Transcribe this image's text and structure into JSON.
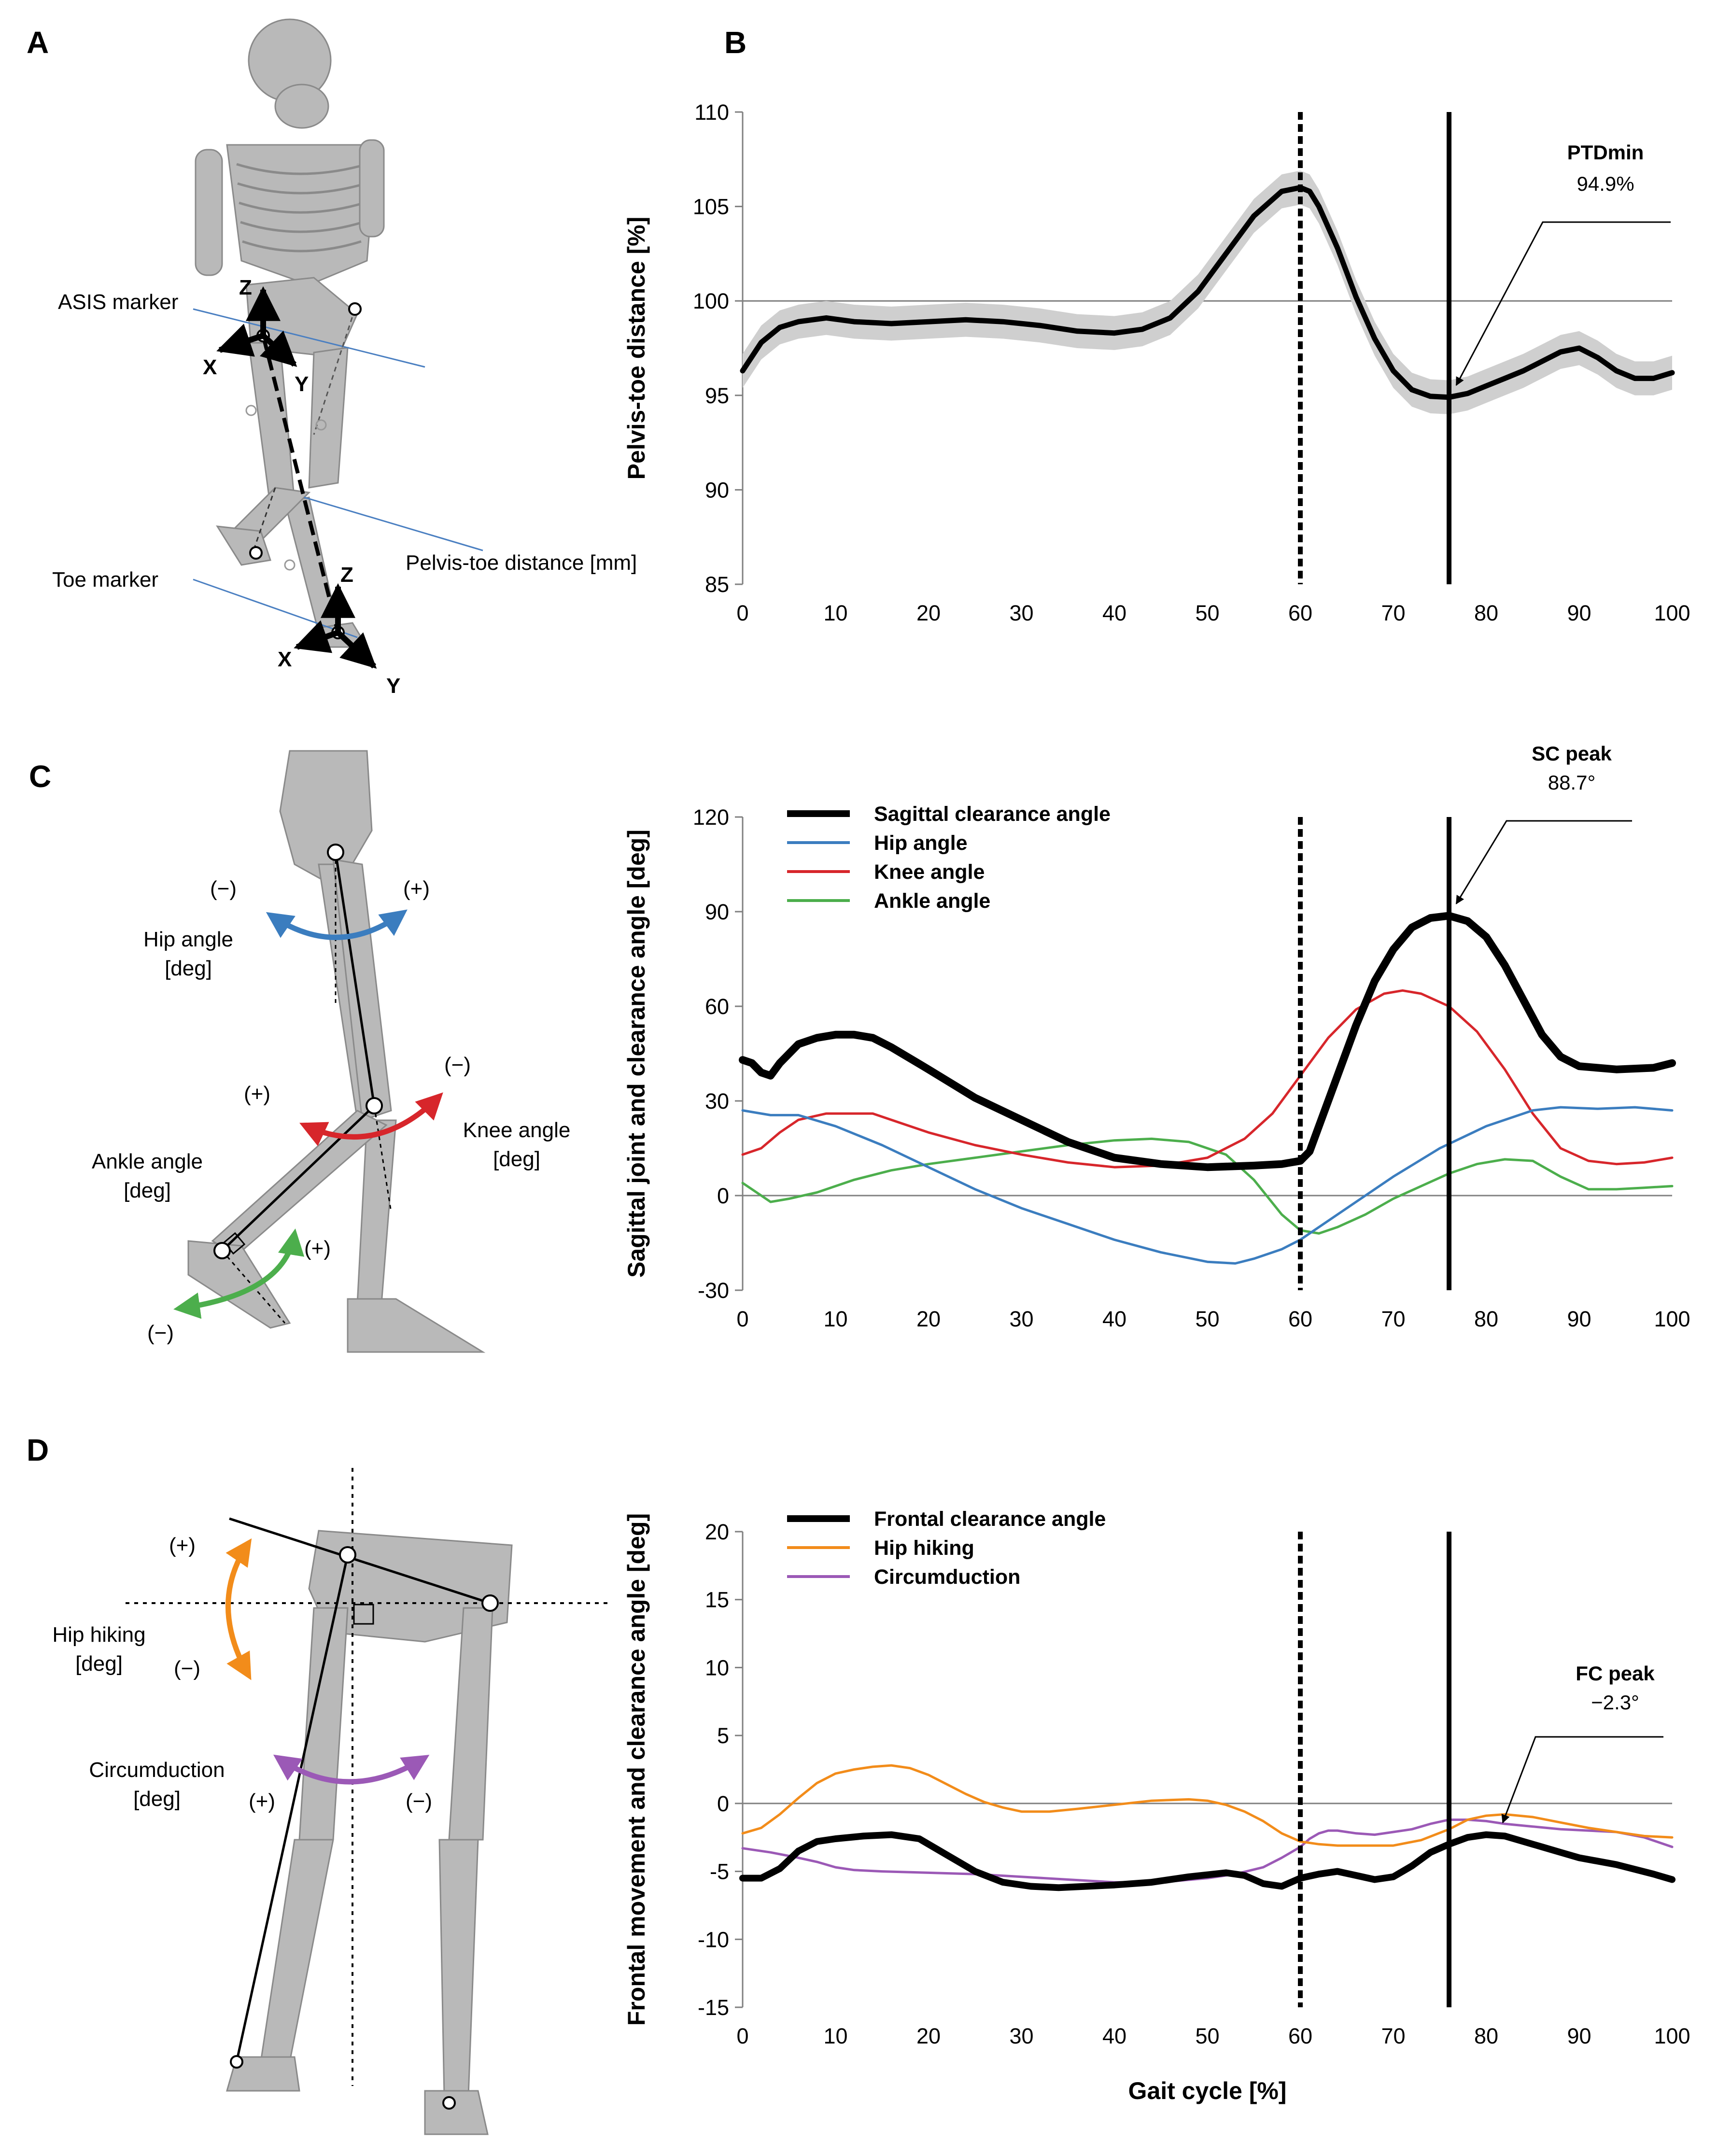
{
  "panels": {
    "a": "A",
    "b": "B",
    "c": "C",
    "d": "D"
  },
  "schematic_a": {
    "asis_marker": "ASIS marker",
    "toe_marker": "Toe marker",
    "pelvis_toe_distance": "Pelvis-toe distance [mm]",
    "axis_x": "X",
    "axis_y": "Y",
    "axis_z": "Z"
  },
  "schematic_c": {
    "hip_angle_1": "Hip angle",
    "hip_angle_2": "[deg]",
    "knee_angle_1": "Knee angle",
    "knee_angle_2": "[deg]",
    "ankle_angle_1": "Ankle angle",
    "ankle_angle_2": "[deg]",
    "minus": "(−)",
    "plus": "(+)"
  },
  "schematic_d": {
    "hip_hiking_1": "Hip hiking",
    "hip_hiking_2": "[deg]",
    "circumduction_1": "Circumduction",
    "circumduction_2": "[deg]",
    "minus": "(−)",
    "plus": "(+)"
  },
  "colors": {
    "black": "#000000",
    "hip": "#3b7dbf",
    "knee": "#d7262b",
    "ankle": "#4cae4c",
    "hiking": "#f28c1a",
    "circumduction": "#9b59b6",
    "band": "#cfcfcf",
    "ref": "#7f7f7f"
  },
  "chart_data": [
    {
      "id": "B",
      "type": "line",
      "title": "",
      "xlabel": "",
      "ylabel": "Pelvis-toe distance [%]",
      "xlim": [
        0,
        100
      ],
      "ylim": [
        85,
        110
      ],
      "x_ticks": [
        0,
        10,
        20,
        30,
        40,
        50,
        60,
        70,
        80,
        90,
        100
      ],
      "y_ticks": [
        85,
        90,
        95,
        100,
        105,
        110
      ],
      "reference_line": 100,
      "vlines": [
        {
          "x": 60,
          "style": "dashed"
        },
        {
          "x": 76,
          "style": "solid"
        }
      ],
      "annotation": {
        "title": "PTDmin",
        "value": "94.9%",
        "x": 76,
        "y": 94.9
      },
      "series": [
        {
          "name": "Pelvis-toe distance",
          "color": "#000000",
          "band": 0.9,
          "x": [
            0,
            2,
            4,
            6,
            9,
            12,
            16,
            20,
            24,
            28,
            32,
            36,
            40,
            43,
            46,
            49,
            52,
            55,
            58,
            60,
            61,
            62,
            64,
            66,
            68,
            70,
            72,
            74,
            76,
            78,
            80,
            82,
            84,
            86,
            88,
            90,
            92,
            94,
            96,
            98,
            100
          ],
          "y": [
            96.3,
            97.8,
            98.6,
            98.9,
            99.1,
            98.9,
            98.8,
            98.9,
            99.0,
            98.9,
            98.7,
            98.4,
            98.3,
            98.5,
            99.1,
            100.5,
            102.5,
            104.5,
            105.8,
            106.0,
            105.8,
            105.0,
            102.8,
            100.2,
            98.0,
            96.3,
            95.3,
            94.95,
            94.9,
            95.1,
            95.5,
            95.9,
            96.3,
            96.8,
            97.3,
            97.5,
            97.0,
            96.3,
            95.9,
            95.9,
            96.2
          ]
        }
      ]
    },
    {
      "id": "C",
      "type": "line",
      "title": "",
      "xlabel": "",
      "ylabel": "Sagittal joint and clearance angle [deg]",
      "xlim": [
        0,
        100
      ],
      "ylim": [
        -30,
        120
      ],
      "x_ticks": [
        0,
        10,
        20,
        30,
        40,
        50,
        60,
        70,
        80,
        90,
        100
      ],
      "y_ticks": [
        -30,
        0,
        30,
        60,
        90,
        120
      ],
      "reference_line": 0,
      "vlines": [
        {
          "x": 60,
          "style": "dashed"
        },
        {
          "x": 76,
          "style": "solid"
        }
      ],
      "annotation": {
        "title": "SC peak",
        "value": "88.7°",
        "x": 76,
        "y": 88.7
      },
      "legend_position": "top-left",
      "series": [
        {
          "name": "Sagittal clearance angle",
          "color": "#000000",
          "width": 16,
          "x": [
            0,
            1,
            2,
            3,
            4,
            6,
            8,
            10,
            12,
            14,
            16,
            20,
            25,
            30,
            35,
            40,
            45,
            50,
            55,
            58,
            60,
            61,
            62,
            64,
            66,
            68,
            70,
            72,
            74,
            76,
            78,
            80,
            82,
            84,
            86,
            88,
            90,
            94,
            98,
            100
          ],
          "y": [
            43,
            42,
            39,
            38,
            42,
            48,
            50,
            51,
            51,
            50,
            47,
            40,
            31,
            24,
            17,
            12,
            10,
            9,
            9.5,
            10,
            11,
            14,
            22,
            38,
            54,
            68,
            78,
            85,
            88,
            88.7,
            87,
            82,
            73,
            62,
            51,
            44,
            41,
            40,
            40.5,
            42
          ]
        },
        {
          "name": "Hip angle",
          "color": "#3b7dbf",
          "width": 5,
          "x": [
            0,
            3,
            6,
            10,
            15,
            20,
            25,
            30,
            35,
            40,
            45,
            50,
            53,
            55,
            58,
            60,
            62,
            65,
            70,
            75,
            80,
            85,
            88,
            92,
            96,
            100
          ],
          "y": [
            27,
            25.5,
            25.5,
            22,
            16,
            9,
            2,
            -4,
            -9,
            -14,
            -18,
            -21,
            -21.5,
            -20,
            -17,
            -14,
            -10,
            -4,
            6,
            15,
            22,
            27,
            28,
            27.5,
            28,
            27
          ]
        },
        {
          "name": "Knee angle",
          "color": "#d7262b",
          "width": 5,
          "x": [
            0,
            2,
            4,
            6,
            9,
            12,
            14,
            17,
            20,
            25,
            30,
            35,
            40,
            45,
            50,
            54,
            57,
            60,
            63,
            66,
            69,
            71,
            73,
            76,
            79,
            82,
            85,
            88,
            91,
            94,
            97,
            100
          ],
          "y": [
            13,
            15,
            20,
            24,
            26,
            26,
            26,
            23,
            20,
            16,
            13,
            10.5,
            9,
            9.5,
            12,
            18,
            26,
            38,
            50,
            59,
            64,
            65,
            64,
            60,
            52,
            40,
            26,
            15,
            11,
            10,
            10.5,
            12
          ]
        },
        {
          "name": "Ankle angle",
          "color": "#4cae4c",
          "width": 5,
          "x": [
            0,
            1,
            3,
            5,
            8,
            12,
            16,
            20,
            25,
            30,
            35,
            40,
            44,
            48,
            52,
            55,
            58,
            60,
            62,
            64,
            67,
            70,
            73,
            76,
            79,
            82,
            85,
            88,
            91,
            94,
            97,
            100
          ],
          "y": [
            4,
            2,
            -2,
            -1,
            1,
            5,
            8,
            10,
            12,
            14,
            16,
            17.5,
            18,
            17,
            13,
            5,
            -6,
            -11,
            -12,
            -10,
            -6,
            -1,
            3,
            7,
            10,
            11.5,
            11,
            6,
            2,
            2,
            2.5,
            3
          ]
        }
      ]
    },
    {
      "id": "D",
      "type": "line",
      "title": "",
      "xlabel": "Gait cycle [%]",
      "ylabel": "Frontal movement and clearance angle [deg]",
      "xlim": [
        0,
        100
      ],
      "ylim": [
        -15,
        20
      ],
      "x_ticks": [
        0,
        10,
        20,
        30,
        40,
        50,
        60,
        70,
        80,
        90,
        100
      ],
      "y_ticks": [
        -15,
        -10,
        -5,
        0,
        5,
        10,
        15,
        20
      ],
      "reference_line": 0,
      "vlines": [
        {
          "x": 60,
          "style": "dashed"
        },
        {
          "x": 76,
          "style": "solid"
        }
      ],
      "annotation": {
        "title": "FC peak",
        "value": "−2.3°",
        "x": 81,
        "y": -2.3
      },
      "legend_position": "top-left",
      "series": [
        {
          "name": "Frontal clearance angle",
          "color": "#000000",
          "width": 14,
          "x": [
            0,
            2,
            4,
            6,
            8,
            10,
            13,
            16,
            19,
            22,
            25,
            28,
            31,
            34,
            37,
            40,
            44,
            48,
            52,
            54,
            56,
            58,
            60,
            62,
            64,
            66,
            68,
            70,
            72,
            74,
            76,
            78,
            80,
            82,
            84,
            86,
            88,
            90,
            94,
            98,
            100
          ],
          "y": [
            -5.5,
            -5.5,
            -4.8,
            -3.5,
            -2.8,
            -2.6,
            -2.4,
            -2.3,
            -2.6,
            -3.8,
            -5.0,
            -5.8,
            -6.1,
            -6.2,
            -6.1,
            -6.0,
            -5.8,
            -5.4,
            -5.1,
            -5.3,
            -5.9,
            -6.1,
            -5.5,
            -5.2,
            -5.0,
            -5.3,
            -5.6,
            -5.4,
            -4.6,
            -3.6,
            -3.0,
            -2.5,
            -2.3,
            -2.4,
            -2.8,
            -3.2,
            -3.6,
            -4.0,
            -4.5,
            -5.2,
            -5.6
          ]
        },
        {
          "name": "Hip hiking",
          "color": "#f28c1a",
          "width": 5,
          "x": [
            0,
            2,
            4,
            6,
            8,
            10,
            12,
            14,
            16,
            18,
            20,
            22,
            24,
            26,
            28,
            30,
            33,
            36,
            40,
            44,
            48,
            50,
            52,
            54,
            56,
            58,
            60,
            62,
            64,
            67,
            70,
            73,
            76,
            78,
            80,
            82,
            85,
            88,
            91,
            94,
            97,
            100
          ],
          "y": [
            -2.2,
            -1.8,
            -0.8,
            0.4,
            1.5,
            2.2,
            2.5,
            2.7,
            2.8,
            2.6,
            2.1,
            1.4,
            0.7,
            0.1,
            -0.3,
            -0.6,
            -0.6,
            -0.4,
            -0.1,
            0.2,
            0.3,
            0.2,
            -0.1,
            -0.6,
            -1.3,
            -2.2,
            -2.8,
            -3.0,
            -3.1,
            -3.1,
            -3.1,
            -2.7,
            -1.9,
            -1.2,
            -0.9,
            -0.8,
            -1.0,
            -1.4,
            -1.8,
            -2.1,
            -2.4,
            -2.5
          ]
        },
        {
          "name": "Circumduction",
          "color": "#9b59b6",
          "width": 5,
          "x": [
            0,
            3,
            6,
            8,
            10,
            12,
            15,
            20,
            25,
            30,
            35,
            40,
            45,
            50,
            53,
            56,
            58,
            60,
            61,
            62,
            63,
            64,
            66,
            68,
            70,
            72,
            74,
            76,
            78,
            80,
            82,
            85,
            88,
            91,
            94,
            97,
            100
          ],
          "y": [
            -3.3,
            -3.6,
            -4.0,
            -4.3,
            -4.7,
            -4.9,
            -5.0,
            -5.1,
            -5.2,
            -5.4,
            -5.6,
            -5.8,
            -5.8,
            -5.5,
            -5.2,
            -4.7,
            -4.0,
            -3.2,
            -2.6,
            -2.2,
            -2.0,
            -2.0,
            -2.2,
            -2.3,
            -2.1,
            -1.9,
            -1.5,
            -1.2,
            -1.2,
            -1.3,
            -1.5,
            -1.7,
            -1.9,
            -2.0,
            -2.1,
            -2.5,
            -3.2
          ]
        }
      ]
    }
  ]
}
